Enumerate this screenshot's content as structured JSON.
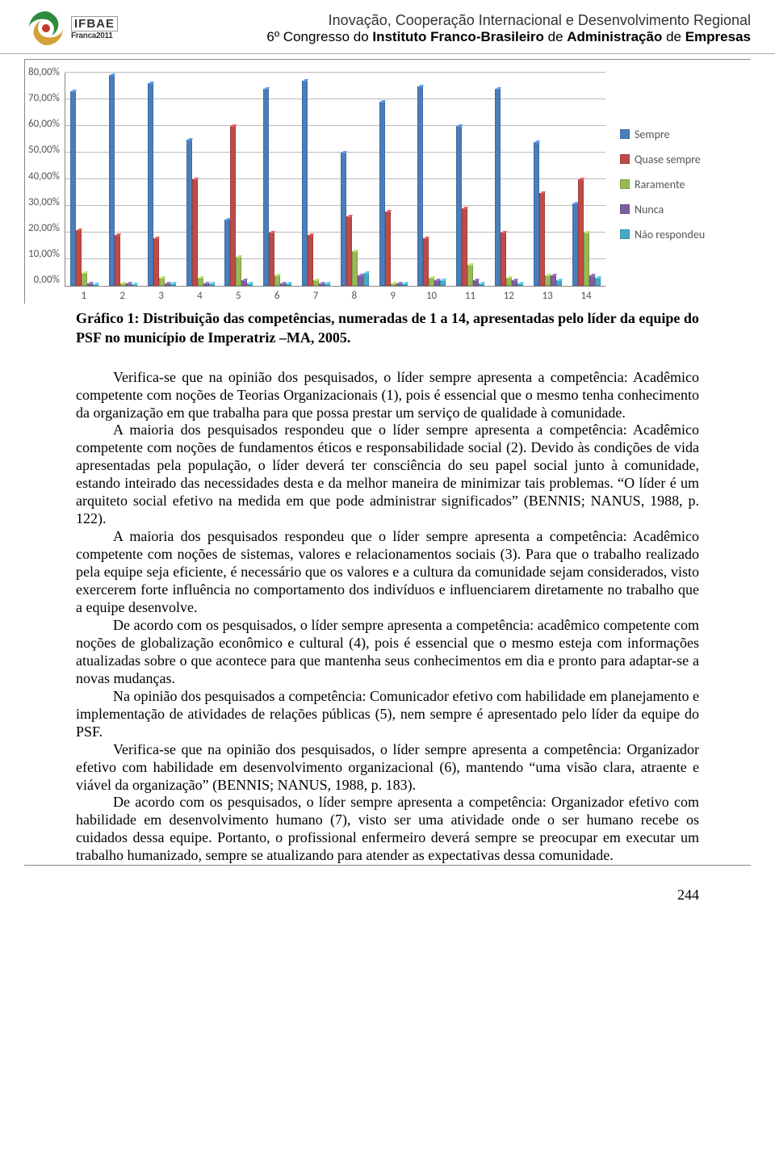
{
  "header": {
    "logo_top": "IFBAE",
    "logo_bottom": "Franca2011",
    "title_main": "Inovação, Cooperação Internacional e Desenvolvimento Regional",
    "title_sub_prefix": "6º Congresso do ",
    "title_sub_bold": "Instituto Franco-Brasileiro",
    "title_sub_mid": " de ",
    "title_sub_bold2": "Administração",
    "title_sub_mid2": " de ",
    "title_sub_bold3": "Empresas"
  },
  "chart": {
    "type": "bar",
    "ylim_max": 80,
    "ylim_min": 0,
    "ytick_step": 10,
    "yticks": [
      "80,00%",
      "70,00%",
      "60,00%",
      "50,00%",
      "40,00%",
      "30,00%",
      "20,00%",
      "10,00%",
      "0,00%"
    ],
    "categories": [
      "1",
      "2",
      "3",
      "4",
      "5",
      "6",
      "7",
      "8",
      "9",
      "10",
      "11",
      "12",
      "13",
      "14"
    ],
    "series": [
      {
        "name": "Sempre",
        "color": "#4a7ebb",
        "values": [
          73,
          79,
          76,
          55,
          25,
          74,
          77,
          50,
          69,
          75,
          60,
          74,
          54,
          31
        ]
      },
      {
        "name": "Quase sempre",
        "color": "#be4b48",
        "values": [
          21,
          19,
          18,
          40,
          60,
          20,
          19,
          26,
          28,
          18,
          29,
          20,
          35,
          40
        ]
      },
      {
        "name": "Raramente",
        "color": "#98b954",
        "values": [
          5,
          1,
          3,
          3,
          11,
          4,
          2,
          13,
          1,
          3,
          8,
          3,
          4,
          20
        ]
      },
      {
        "name": "Nunca",
        "color": "#7d60a0",
        "values": [
          1,
          1,
          1,
          1,
          2,
          1,
          1,
          4,
          1,
          2,
          2,
          2,
          4,
          4
        ]
      },
      {
        "name": "Não respondeu",
        "color": "#46aac5",
        "values": [
          0,
          0,
          1,
          1,
          1,
          1,
          1,
          5,
          1,
          2,
          1,
          1,
          2,
          3
        ]
      }
    ],
    "grid_color": "#bbbbbb",
    "bg_color": "#ffffff",
    "font_family": "Calibri",
    "label_fontsize": 13
  },
  "caption": "Gráfico 1: Distribuição das competências, numeradas de 1 a 14,  apresentadas pelo líder da equipe do PSF no município de Imperatriz –MA,  2005.",
  "paragraphs": [
    "Verifica-se que na opinião dos pesquisados, o líder sempre apresenta a competência: Acadêmico competente com noções de Teorias Organizacionais (1), pois é essencial que o mesmo tenha conhecimento da organização em que trabalha para que possa prestar um serviço de qualidade à comunidade.",
    "A maioria dos pesquisados respondeu que o líder sempre apresenta a competência: Acadêmico competente com noções de fundamentos éticos e responsabilidade social (2). Devido às condições de vida apresentadas pela população, o líder deverá ter consciência do seu papel social junto à comunidade, estando inteirado das necessidades desta e da melhor maneira de minimizar tais problemas. “O líder é um arquiteto social efetivo na medida em que pode administrar significados” (BENNIS; NANUS, 1988, p. 122).",
    "A maioria dos pesquisados respondeu que o líder sempre apresenta a competência: Acadêmico competente com noções de sistemas, valores e relacionamentos sociais (3).  Para que o trabalho realizado pela equipe seja eficiente, é necessário que os valores e a cultura da comunidade sejam considerados, visto exercerem forte influência no comportamento dos indivíduos e influenciarem diretamente no trabalho que a equipe desenvolve.",
    "De acordo com os pesquisados, o líder sempre apresenta a competência: acadêmico competente com noções de globalização econômico e cultural (4), pois é essencial que o mesmo esteja com informações atualizadas sobre o que acontece para que mantenha seus conhecimentos em dia e pronto para adaptar-se a novas mudanças.",
    "Na opinião dos pesquisados a competência: Comunicador efetivo com habilidade em planejamento e implementação de atividades de relações públicas (5), nem sempre é apresentado pelo líder da equipe do PSF.",
    "Verifica-se que na opinião dos pesquisados, o líder sempre apresenta a competência: Organizador efetivo com habilidade em desenvolvimento organizacional (6), mantendo “uma visão clara, atraente e viável da organização” (BENNIS; NANUS, 1988, p. 183).",
    "De acordo com os pesquisados, o líder sempre apresenta a competência: Organizador efetivo com habilidade em desenvolvimento humano (7), visto ser uma atividade onde o ser humano recebe os cuidados dessa equipe. Portanto, o profissional enfermeiro deverá sempre se preocupar em executar um trabalho humanizado, sempre se atualizando para atender as expectativas dessa comunidade."
  ],
  "page_number": "244"
}
